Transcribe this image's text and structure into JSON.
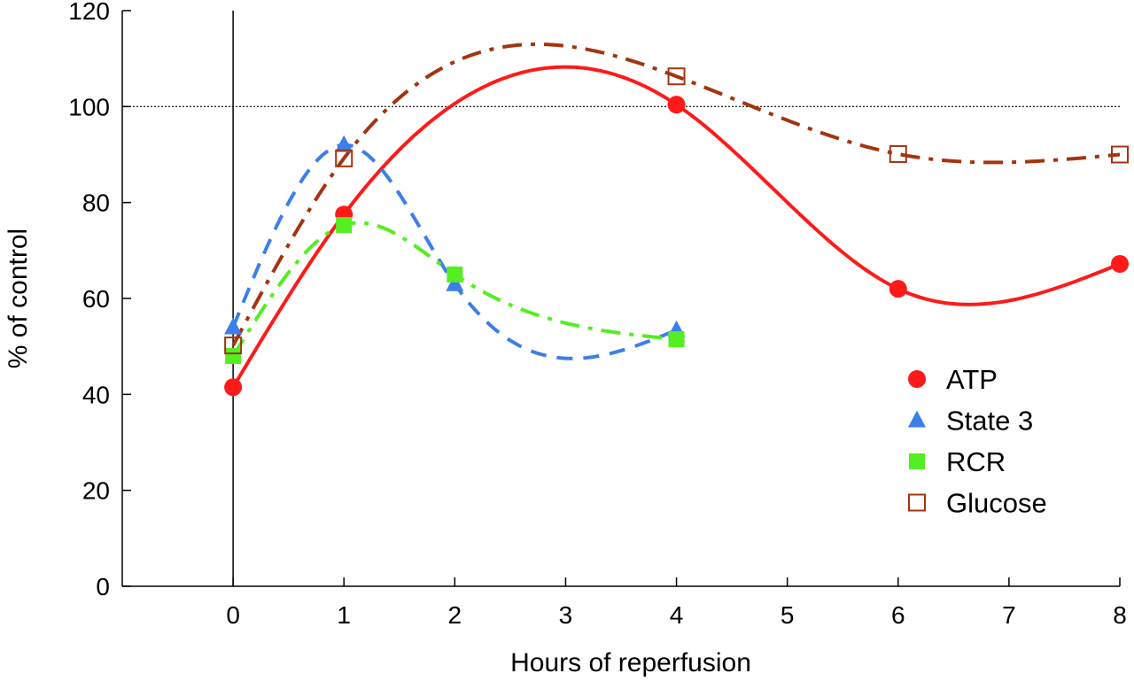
{
  "chart_data": {
    "type": "line",
    "title": "",
    "xlabel": "Hours of reperfusion",
    "ylabel": "% of control",
    "xlim": [
      -1,
      8
    ],
    "ylim": [
      0,
      120
    ],
    "xticks": [
      0,
      1,
      2,
      3,
      4,
      5,
      6,
      7,
      8
    ],
    "yticks": [
      0,
      20,
      40,
      60,
      80,
      100,
      120
    ],
    "reference_line": {
      "y": 100,
      "style": "dotted"
    },
    "vertical_line": {
      "x": 0
    },
    "grid": false,
    "legend_placement": "bottom-right",
    "series": [
      {
        "name": "ATP",
        "marker": "filled-circle",
        "line": "solid",
        "color": "#ff1a1a",
        "x": [
          0,
          1,
          4,
          6,
          8
        ],
        "y": [
          41.5,
          77.5,
          100.4,
          62,
          67.2
        ]
      },
      {
        "name": "State 3",
        "marker": "filled-triangle",
        "line": "dashed",
        "color": "#3b7fe8",
        "x": [
          0,
          1,
          2,
          4
        ],
        "y": [
          54,
          92,
          63,
          53.4
        ]
      },
      {
        "name": "RCR",
        "marker": "filled-square",
        "line": "dash-dot",
        "color": "#55ee22",
        "x": [
          0,
          1,
          2,
          4
        ],
        "y": [
          48,
          75.3,
          65,
          51.5
        ]
      },
      {
        "name": "Glucose",
        "marker": "open-square",
        "line": "dash-dot",
        "color": "#a3340f",
        "x": [
          0,
          1,
          4,
          6,
          8
        ],
        "y": [
          50.2,
          89.2,
          106.3,
          90.1,
          90
        ]
      }
    ]
  }
}
